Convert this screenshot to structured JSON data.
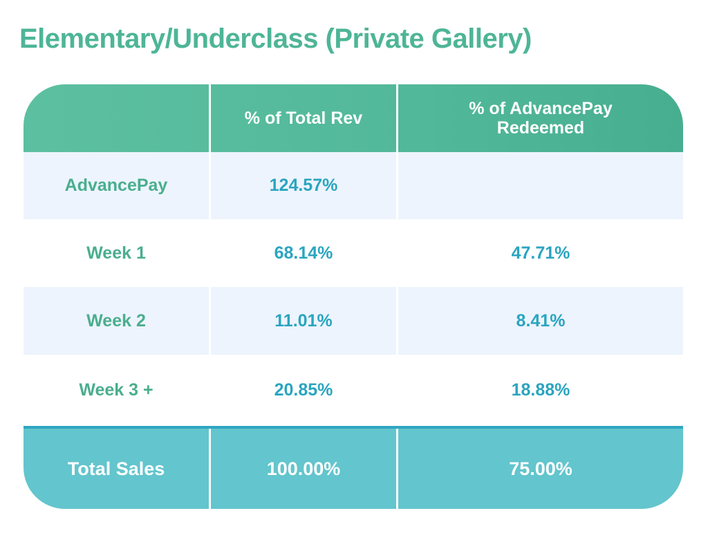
{
  "title": "Elementary/Underclass (Private Gallery)",
  "chart_data": {
    "type": "table",
    "columns": [
      "",
      "% of Total Rev",
      "% of AdvancePay Redeemed"
    ],
    "rows": [
      {
        "label": "AdvancePay",
        "pct_total_rev": "124.57%",
        "pct_advancepay_redeemed": ""
      },
      {
        "label": "Week 1",
        "pct_total_rev": "68.14%",
        "pct_advancepay_redeemed": "47.71%"
      },
      {
        "label": "Week 2",
        "pct_total_rev": "11.01%",
        "pct_advancepay_redeemed": "8.41%"
      },
      {
        "label": "Week 3 +",
        "pct_total_rev": "20.85%",
        "pct_advancepay_redeemed": "18.88%"
      }
    ],
    "total": {
      "label": "Total Sales",
      "pct_total_rev": "100.00%",
      "pct_advancepay_redeemed": "75.00%"
    },
    "header_color": "#52b89a",
    "total_color": "#63c5cd",
    "label_color": "#4aae8e",
    "value_color": "#2aa5bf"
  }
}
